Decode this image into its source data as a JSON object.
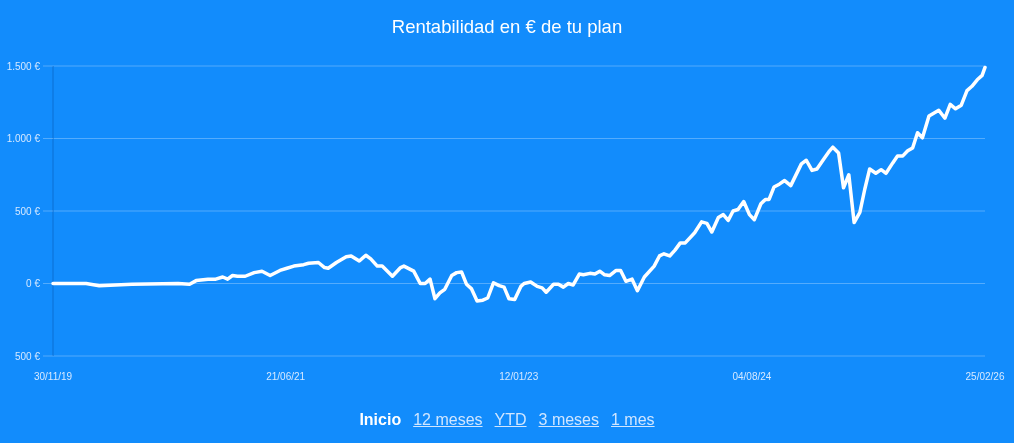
{
  "chart_data": {
    "type": "line",
    "title": "Rentabilidad en € de tu plan",
    "x": [
      "2019-11-30",
      "2020-02-19",
      "2020-03-22",
      "2020-06-10",
      "2020-10-01",
      "2020-10-29",
      "2020-11-14",
      "2020-12-13",
      "2021-01-01",
      "2021-01-18",
      "2021-01-30",
      "2021-02-11",
      "2021-02-23",
      "2021-03-14",
      "2021-04-05",
      "2021-04-24",
      "2021-05-14",
      "2021-06-07",
      "2021-06-24",
      "2021-07-11",
      "2021-08-04",
      "2021-08-16",
      "2021-09-09",
      "2021-09-24",
      "2021-10-03",
      "2021-10-23",
      "2021-11-16",
      "2021-11-28",
      "2021-12-18",
      "2022-01-03",
      "2022-01-15",
      "2022-01-31",
      "2022-02-12",
      "2022-03-09",
      "2022-03-29",
      "2022-04-06",
      "2022-04-30",
      "2022-05-16",
      "2022-05-28",
      "2022-06-09",
      "2022-06-21",
      "2022-07-03",
      "2022-07-15",
      "2022-08-01",
      "2022-08-13",
      "2022-08-25",
      "2022-09-06",
      "2022-09-18",
      "2022-10-02",
      "2022-10-16",
      "2022-10-28",
      "2022-11-11",
      "2022-11-25",
      "2022-12-07",
      "2022-12-19",
      "2023-01-02",
      "2023-01-17",
      "2023-01-25",
      "2023-02-10",
      "2023-02-26",
      "2023-03-10",
      "2023-03-20",
      "2023-04-07",
      "2023-04-19",
      "2023-05-01",
      "2023-05-13",
      "2023-05-25",
      "2023-06-09",
      "2023-06-19",
      "2023-07-05",
      "2023-07-17",
      "2023-07-29",
      "2023-08-10",
      "2023-08-22",
      "2023-09-07",
      "2023-09-18",
      "2023-10-01",
      "2023-10-16",
      "2023-10-29",
      "2023-11-15",
      "2023-12-09",
      "2023-12-22",
      "2024-01-02",
      "2024-01-16",
      "2024-01-29",
      "2024-02-11",
      "2024-02-23",
      "2024-03-17",
      "2024-04-03",
      "2024-04-16",
      "2024-04-28",
      "2024-05-14",
      "2024-05-26",
      "2024-06-07",
      "2024-06-19",
      "2024-07-01",
      "2024-07-15",
      "2024-07-29",
      "2024-08-10",
      "2024-08-26",
      "2024-09-06",
      "2024-09-15",
      "2024-09-27",
      "2024-10-10",
      "2024-10-23",
      "2024-11-07",
      "2024-12-03",
      "2024-12-15",
      "2024-12-29",
      "2025-01-10",
      "2025-01-26",
      "2025-02-10",
      "2025-02-18",
      "2025-03-04",
      "2025-03-16",
      "2025-03-29",
      "2025-04-11",
      "2025-04-25",
      "2025-05-07",
      "2025-05-19",
      "2025-06-03",
      "2025-06-16",
      "2025-06-28",
      "2025-07-14",
      "2025-07-26",
      "2025-08-08",
      "2025-08-20",
      "2025-09-01",
      "2025-09-13",
      "2025-09-25",
      "2025-10-11",
      "2025-11-04",
      "2025-11-19",
      "2025-12-02",
      "2025-12-15",
      "2025-12-29",
      "2026-01-12",
      "2026-01-24",
      "2026-02-06",
      "2026-02-18",
      "2026-02-25"
    ],
    "series": [
      {
        "color": "#ffffff",
        "values": [
          0,
          0,
          -15,
          -5,
          0,
          -5,
          20,
          30,
          30,
          45,
          30,
          55,
          50,
          50,
          75,
          85,
          55,
          90,
          105,
          120,
          130,
          140,
          145,
          110,
          105,
          145,
          185,
          190,
          155,
          195,
          170,
          120,
          120,
          50,
          110,
          120,
          85,
          0,
          0,
          30,
          -105,
          -65,
          -40,
          55,
          75,
          80,
          -5,
          -35,
          -120,
          -115,
          -100,
          5,
          -15,
          -25,
          -105,
          -110,
          -20,
          0,
          10,
          -20,
          -30,
          -60,
          -5,
          -5,
          -25,
          0,
          -10,
          65,
          60,
          70,
          65,
          85,
          60,
          55,
          90,
          90,
          15,
          30,
          -50,
          45,
          120,
          190,
          205,
          190,
          230,
          280,
          280,
          350,
          425,
          415,
          355,
          455,
          475,
          435,
          500,
          510,
          565,
          475,
          440,
          550,
          580,
          580,
          665,
          685,
          710,
          675,
          825,
          850,
          780,
          790,
          855,
          915,
          940,
          900,
          660,
          750,
          420,
          490,
          650,
          790,
          760,
          785,
          760,
          830,
          880,
          880,
          915,
          935,
          1040,
          1005,
          1155,
          1195,
          1140,
          1235,
          1205,
          1230,
          1330,
          1360,
          1405,
          1435,
          1490
        ]
      }
    ],
    "xlim": [
      "2019-11-30",
      "2026-02-25"
    ],
    "xticks": [
      {
        "value": "2019-11-30",
        "label": "30/11/19"
      },
      {
        "value": "2021-06-21",
        "label": "21/06/21"
      },
      {
        "value": "2023-01-12",
        "label": "12/01/23"
      },
      {
        "value": "2024-08-04",
        "label": "04/08/24"
      },
      {
        "value": "2026-02-25",
        "label": "25/02/26"
      }
    ],
    "ylim": [
      -500,
      1500
    ],
    "yticks": [
      {
        "value": -500,
        "label": "500 €"
      },
      {
        "value": 0,
        "label": "0 €"
      },
      {
        "value": 500,
        "label": "500 €"
      },
      {
        "value": 1000,
        "label": "1.000 €"
      },
      {
        "value": 1500,
        "label": "1.500 €"
      }
    ],
    "grid": "y",
    "annotations": [
      "Inicio",
      "12 meses",
      "YTD",
      "3 meses",
      "1 mes"
    ]
  }
}
